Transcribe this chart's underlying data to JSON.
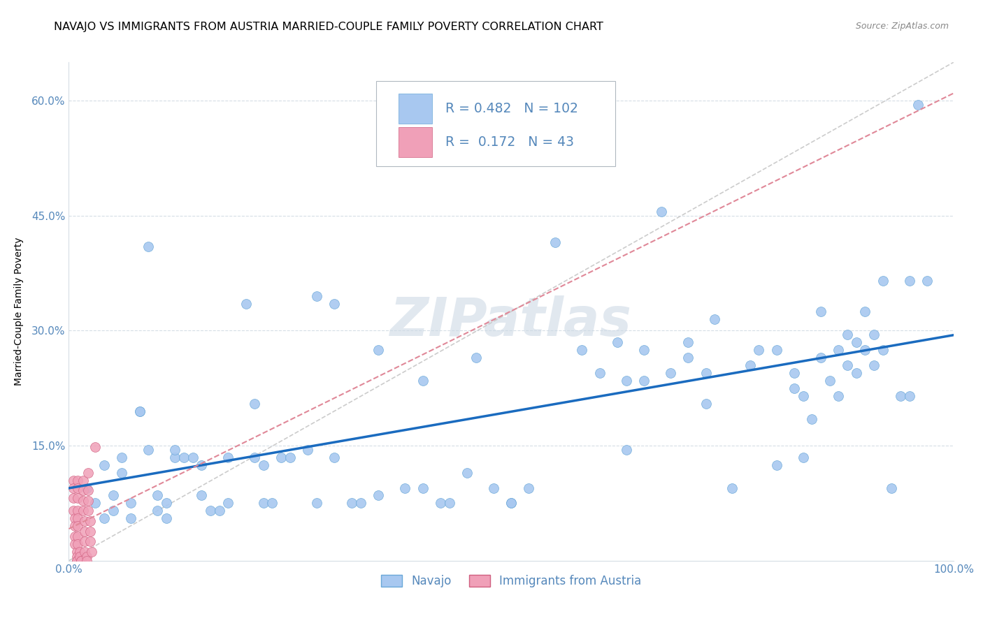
{
  "title": "NAVAJO VS IMMIGRANTS FROM AUSTRIA MARRIED-COUPLE FAMILY POVERTY CORRELATION CHART",
  "source": "Source: ZipAtlas.com",
  "ylabel_label": "Married-Couple Family Poverty",
  "legend_labels": [
    "Navajo",
    "Immigrants from Austria"
  ],
  "navajo_R": 0.482,
  "navajo_N": 102,
  "austria_R": 0.172,
  "austria_N": 43,
  "navajo_color": "#a8c8f0",
  "navajo_edge_color": "#6aa8d8",
  "austria_color": "#f0a0b8",
  "austria_edge_color": "#d06080",
  "trend_navajo_color": "#1a6bbf",
  "trend_austria_color": "#e08898",
  "diag_color": "#cccccc",
  "watermark_color": "#cdd9e5",
  "grid_color": "#d5dde5",
  "background_color": "#ffffff",
  "axis_color": "#5588bb",
  "title_fontsize": 11.5,
  "axis_label_fontsize": 10,
  "tick_fontsize": 11,
  "marker_size": 10,
  "watermark": "ZIPatlas",
  "xmin": 0.0,
  "xmax": 1.0,
  "ymin": 0.0,
  "ymax": 0.65,
  "navajo_points": [
    [
      0.02,
      0.095
    ],
    [
      0.03,
      0.075
    ],
    [
      0.04,
      0.125
    ],
    [
      0.04,
      0.055
    ],
    [
      0.05,
      0.085
    ],
    [
      0.05,
      0.065
    ],
    [
      0.06,
      0.135
    ],
    [
      0.06,
      0.115
    ],
    [
      0.07,
      0.075
    ],
    [
      0.07,
      0.055
    ],
    [
      0.08,
      0.195
    ],
    [
      0.08,
      0.195
    ],
    [
      0.09,
      0.41
    ],
    [
      0.09,
      0.145
    ],
    [
      0.1,
      0.085
    ],
    [
      0.1,
      0.065
    ],
    [
      0.11,
      0.075
    ],
    [
      0.11,
      0.055
    ],
    [
      0.12,
      0.135
    ],
    [
      0.12,
      0.145
    ],
    [
      0.13,
      0.135
    ],
    [
      0.14,
      0.135
    ],
    [
      0.15,
      0.125
    ],
    [
      0.15,
      0.085
    ],
    [
      0.16,
      0.065
    ],
    [
      0.17,
      0.065
    ],
    [
      0.18,
      0.135
    ],
    [
      0.18,
      0.075
    ],
    [
      0.2,
      0.335
    ],
    [
      0.21,
      0.205
    ],
    [
      0.21,
      0.135
    ],
    [
      0.22,
      0.125
    ],
    [
      0.22,
      0.075
    ],
    [
      0.23,
      0.075
    ],
    [
      0.24,
      0.135
    ],
    [
      0.25,
      0.135
    ],
    [
      0.27,
      0.145
    ],
    [
      0.28,
      0.075
    ],
    [
      0.28,
      0.345
    ],
    [
      0.3,
      0.135
    ],
    [
      0.3,
      0.335
    ],
    [
      0.32,
      0.075
    ],
    [
      0.33,
      0.075
    ],
    [
      0.35,
      0.275
    ],
    [
      0.35,
      0.085
    ],
    [
      0.38,
      0.095
    ],
    [
      0.4,
      0.095
    ],
    [
      0.4,
      0.235
    ],
    [
      0.42,
      0.075
    ],
    [
      0.43,
      0.075
    ],
    [
      0.45,
      0.115
    ],
    [
      0.46,
      0.265
    ],
    [
      0.48,
      0.095
    ],
    [
      0.5,
      0.075
    ],
    [
      0.5,
      0.075
    ],
    [
      0.52,
      0.095
    ],
    [
      0.55,
      0.415
    ],
    [
      0.58,
      0.275
    ],
    [
      0.6,
      0.245
    ],
    [
      0.62,
      0.285
    ],
    [
      0.63,
      0.235
    ],
    [
      0.63,
      0.145
    ],
    [
      0.65,
      0.275
    ],
    [
      0.65,
      0.235
    ],
    [
      0.67,
      0.455
    ],
    [
      0.68,
      0.245
    ],
    [
      0.7,
      0.285
    ],
    [
      0.7,
      0.265
    ],
    [
      0.72,
      0.245
    ],
    [
      0.72,
      0.205
    ],
    [
      0.73,
      0.315
    ],
    [
      0.75,
      0.095
    ],
    [
      0.77,
      0.255
    ],
    [
      0.78,
      0.275
    ],
    [
      0.8,
      0.125
    ],
    [
      0.8,
      0.275
    ],
    [
      0.82,
      0.225
    ],
    [
      0.82,
      0.245
    ],
    [
      0.83,
      0.215
    ],
    [
      0.83,
      0.135
    ],
    [
      0.84,
      0.185
    ],
    [
      0.85,
      0.325
    ],
    [
      0.85,
      0.265
    ],
    [
      0.86,
      0.235
    ],
    [
      0.87,
      0.275
    ],
    [
      0.87,
      0.215
    ],
    [
      0.88,
      0.295
    ],
    [
      0.88,
      0.255
    ],
    [
      0.89,
      0.245
    ],
    [
      0.89,
      0.285
    ],
    [
      0.9,
      0.275
    ],
    [
      0.9,
      0.325
    ],
    [
      0.91,
      0.295
    ],
    [
      0.91,
      0.255
    ],
    [
      0.92,
      0.275
    ],
    [
      0.92,
      0.365
    ],
    [
      0.93,
      0.095
    ],
    [
      0.94,
      0.215
    ],
    [
      0.95,
      0.215
    ],
    [
      0.95,
      0.365
    ],
    [
      0.96,
      0.595
    ],
    [
      0.97,
      0.365
    ]
  ],
  "austria_points": [
    [
      0.005,
      0.105
    ],
    [
      0.005,
      0.095
    ],
    [
      0.005,
      0.082
    ],
    [
      0.005,
      0.065
    ],
    [
      0.007,
      0.055
    ],
    [
      0.007,
      0.045
    ],
    [
      0.007,
      0.032
    ],
    [
      0.007,
      0.022
    ],
    [
      0.009,
      0.012
    ],
    [
      0.009,
      0.005
    ],
    [
      0.009,
      0.0
    ],
    [
      0.009,
      0.0
    ],
    [
      0.01,
      0.105
    ],
    [
      0.01,
      0.095
    ],
    [
      0.01,
      0.082
    ],
    [
      0.01,
      0.065
    ],
    [
      0.01,
      0.055
    ],
    [
      0.01,
      0.045
    ],
    [
      0.01,
      0.032
    ],
    [
      0.01,
      0.022
    ],
    [
      0.012,
      0.012
    ],
    [
      0.012,
      0.005
    ],
    [
      0.014,
      0.0
    ],
    [
      0.014,
      0.0
    ],
    [
      0.016,
      0.105
    ],
    [
      0.016,
      0.092
    ],
    [
      0.016,
      0.078
    ],
    [
      0.016,
      0.065
    ],
    [
      0.018,
      0.052
    ],
    [
      0.018,
      0.038
    ],
    [
      0.018,
      0.025
    ],
    [
      0.018,
      0.012
    ],
    [
      0.02,
      0.005
    ],
    [
      0.02,
      0.0
    ],
    [
      0.022,
      0.115
    ],
    [
      0.022,
      0.092
    ],
    [
      0.022,
      0.078
    ],
    [
      0.022,
      0.065
    ],
    [
      0.024,
      0.052
    ],
    [
      0.024,
      0.038
    ],
    [
      0.024,
      0.025
    ],
    [
      0.026,
      0.012
    ],
    [
      0.03,
      0.148
    ]
  ]
}
